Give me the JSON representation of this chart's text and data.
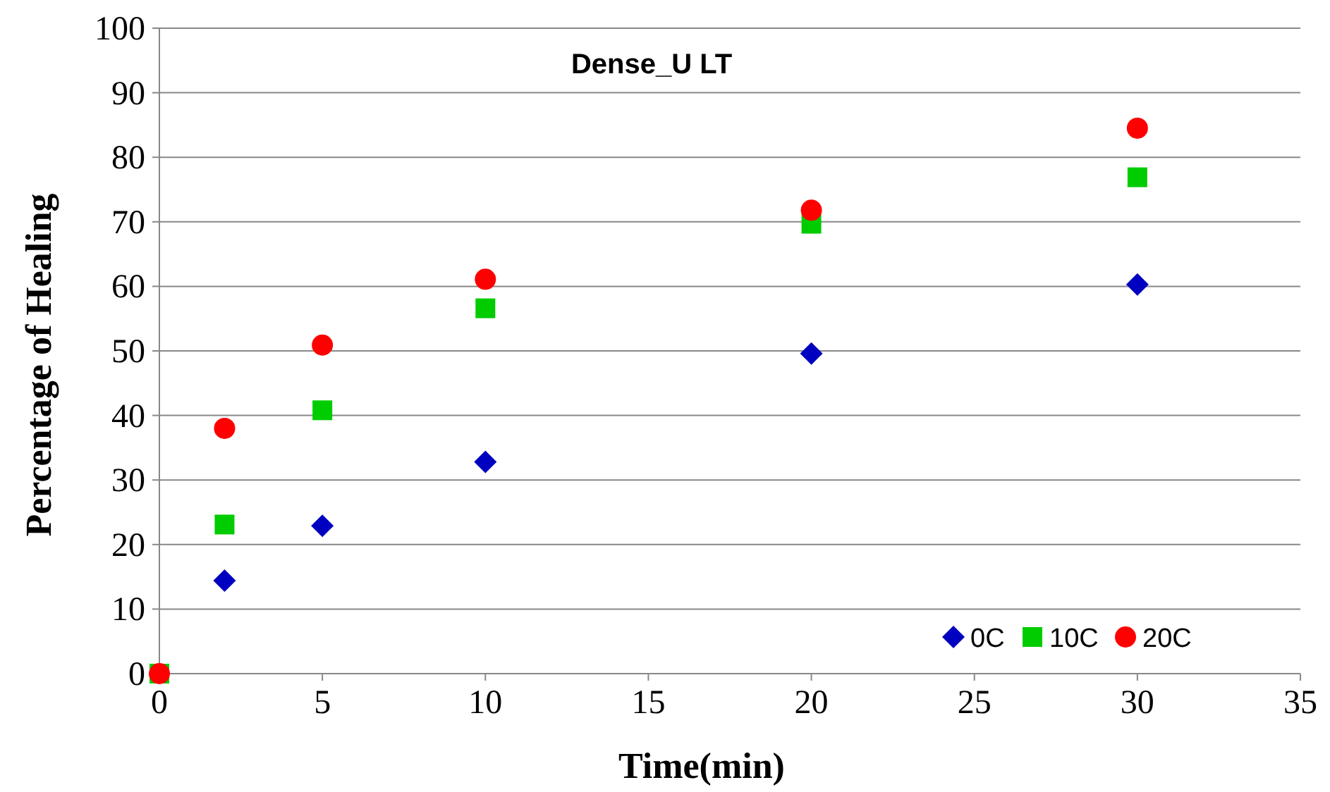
{
  "chart_data": {
    "type": "scatter",
    "title": "Dense_U LT",
    "xlabel": "Time(min)",
    "ylabel": "Percentage of Healing",
    "x": [
      0,
      2,
      5,
      10,
      20,
      30
    ],
    "series": [
      {
        "name": "0C",
        "color": "#0000c0",
        "marker": "diamond",
        "values": [
          null,
          14.4,
          22.9,
          32.8,
          49.6,
          60.3
        ]
      },
      {
        "name": "10C",
        "color": "#00cc00",
        "marker": "square",
        "values": [
          0,
          23.1,
          40.8,
          56.6,
          69.7,
          76.9
        ]
      },
      {
        "name": "20C",
        "color": "#ff0000",
        "marker": "circle",
        "values": [
          0,
          38,
          50.9,
          61.1,
          71.8,
          84.5
        ]
      }
    ],
    "xlim": [
      0,
      35
    ],
    "xticks": [
      0,
      5,
      10,
      15,
      20,
      25,
      30,
      35
    ],
    "ylim": [
      0,
      100
    ],
    "yticks": [
      0,
      10,
      20,
      30,
      40,
      50,
      60,
      70,
      80,
      90,
      100
    ],
    "grid": "y",
    "legend": "bottom right"
  }
}
